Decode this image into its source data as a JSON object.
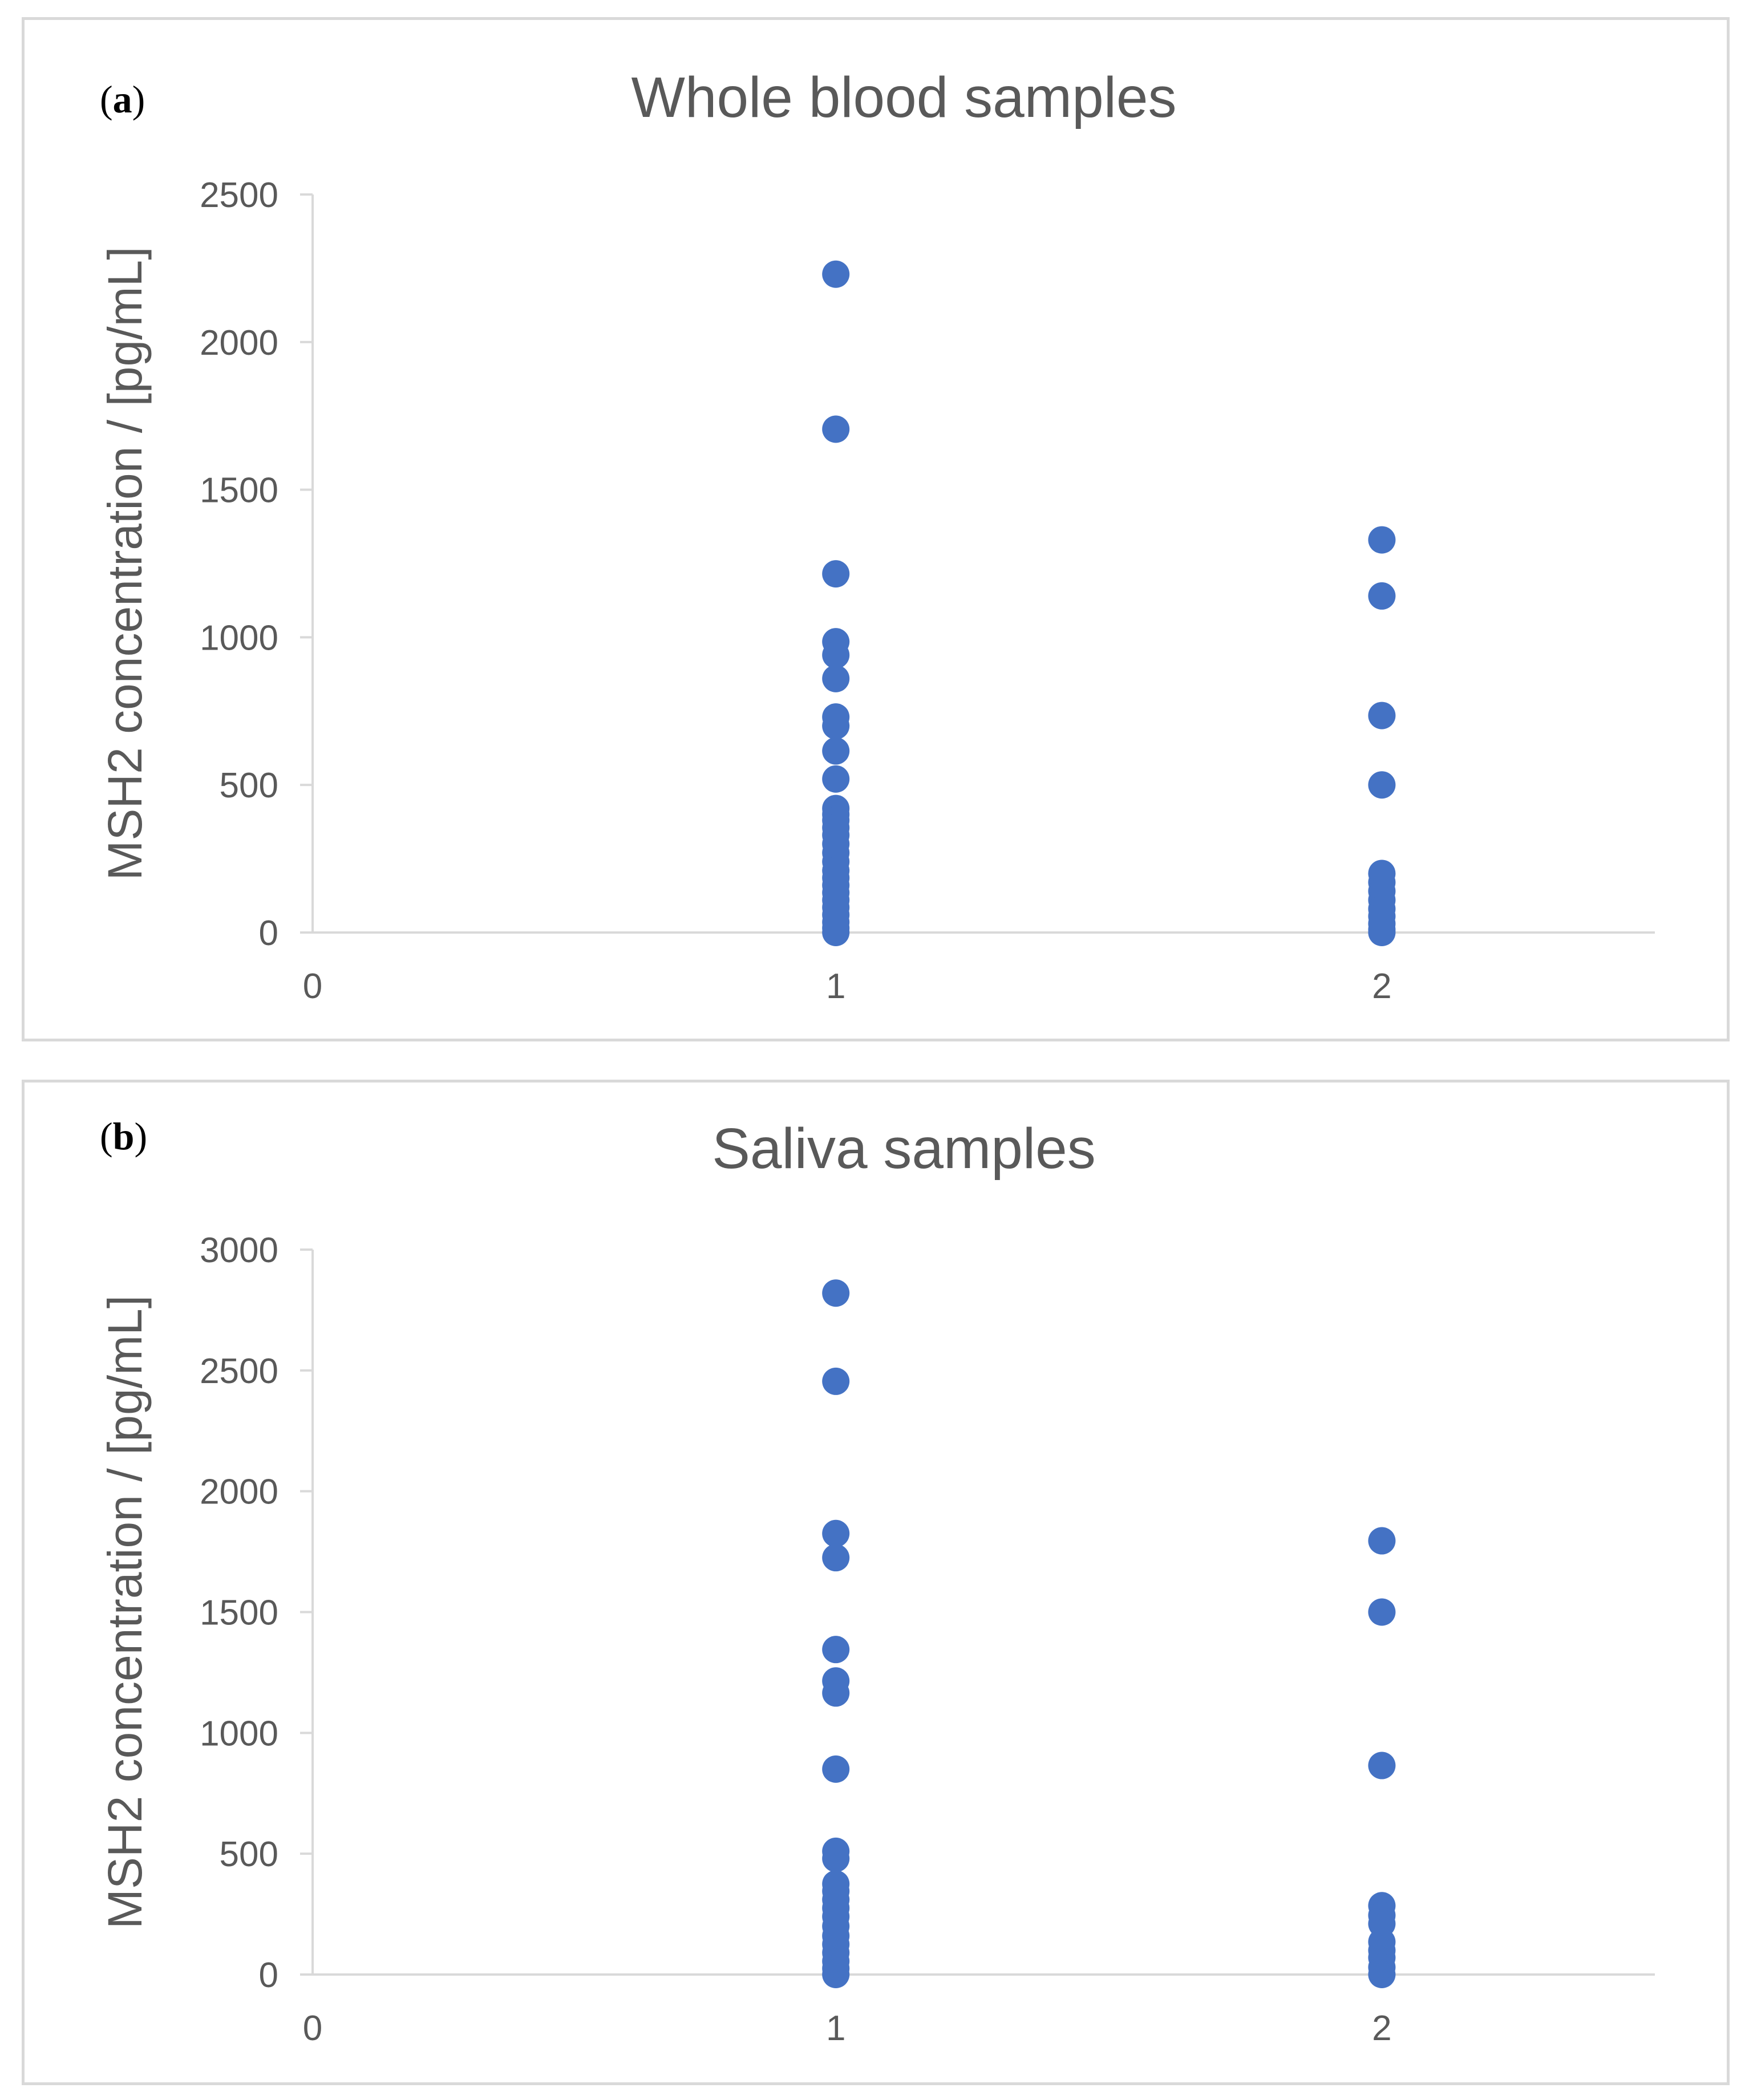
{
  "colors": {
    "point": "#4472c4",
    "axis": "#d9d9d9",
    "text": "#595959"
  },
  "chart_data": [
    {
      "panel": "a",
      "panel_label": "(a)",
      "type": "scatter",
      "title": "Whole blood samples",
      "xlabel": "",
      "ylabel": "MSH2 concentration / [pg/mL]",
      "xlim": [
        0,
        2.5
      ],
      "ylim": [
        0,
        2500
      ],
      "xticks": [
        0,
        1,
        2
      ],
      "yticks": [
        0,
        500,
        1000,
        1500,
        2000,
        2500
      ],
      "series": [
        {
          "name": "Whole blood",
          "points": [
            [
              1,
              2230
            ],
            [
              1,
              1705
            ],
            [
              1,
              1215
            ],
            [
              1,
              985
            ],
            [
              1,
              940
            ],
            [
              1,
              860
            ],
            [
              1,
              730
            ],
            [
              1,
              700
            ],
            [
              1,
              615
            ],
            [
              1,
              520
            ],
            [
              1,
              420
            ],
            [
              1,
              400
            ],
            [
              1,
              380
            ],
            [
              1,
              355
            ],
            [
              1,
              330
            ],
            [
              1,
              300
            ],
            [
              1,
              270
            ],
            [
              1,
              240
            ],
            [
              1,
              210
            ],
            [
              1,
              185
            ],
            [
              1,
              160
            ],
            [
              1,
              135
            ],
            [
              1,
              110
            ],
            [
              1,
              85
            ],
            [
              1,
              60
            ],
            [
              1,
              35
            ],
            [
              1,
              15
            ],
            [
              1,
              0
            ],
            [
              2,
              1330
            ],
            [
              2,
              1140
            ],
            [
              2,
              735
            ],
            [
              2,
              500
            ],
            [
              2,
              200
            ],
            [
              2,
              170
            ],
            [
              2,
              140
            ],
            [
              2,
              110
            ],
            [
              2,
              80
            ],
            [
              2,
              55
            ],
            [
              2,
              30
            ],
            [
              2,
              10
            ],
            [
              2,
              0
            ]
          ]
        }
      ]
    },
    {
      "panel": "b",
      "panel_label": "(b)",
      "type": "scatter",
      "title": "Saliva samples",
      "xlabel": "",
      "ylabel": "MSH2 concentration / [pg/mL]",
      "xlim": [
        0,
        2.5
      ],
      "ylim": [
        0,
        3000
      ],
      "xticks": [
        0,
        1,
        2
      ],
      "yticks": [
        0,
        500,
        1000,
        1500,
        2000,
        2500,
        3000
      ],
      "series": [
        {
          "name": "Saliva",
          "points": [
            [
              1,
              2820
            ],
            [
              1,
              2455
            ],
            [
              1,
              1825
            ],
            [
              1,
              1725
            ],
            [
              1,
              1345
            ],
            [
              1,
              1215
            ],
            [
              1,
              1165
            ],
            [
              1,
              850
            ],
            [
              1,
              510
            ],
            [
              1,
              480
            ],
            [
              1,
              375
            ],
            [
              1,
              345
            ],
            [
              1,
              310
            ],
            [
              1,
              275
            ],
            [
              1,
              240
            ],
            [
              1,
              200
            ],
            [
              1,
              160
            ],
            [
              1,
              125
            ],
            [
              1,
              90
            ],
            [
              1,
              55
            ],
            [
              1,
              25
            ],
            [
              1,
              0
            ],
            [
              2,
              1795
            ],
            [
              2,
              1500
            ],
            [
              2,
              865
            ],
            [
              2,
              285
            ],
            [
              2,
              245
            ],
            [
              2,
              210
            ],
            [
              2,
              135
            ],
            [
              2,
              100
            ],
            [
              2,
              70
            ],
            [
              2,
              30
            ],
            [
              2,
              0
            ]
          ]
        }
      ]
    }
  ]
}
